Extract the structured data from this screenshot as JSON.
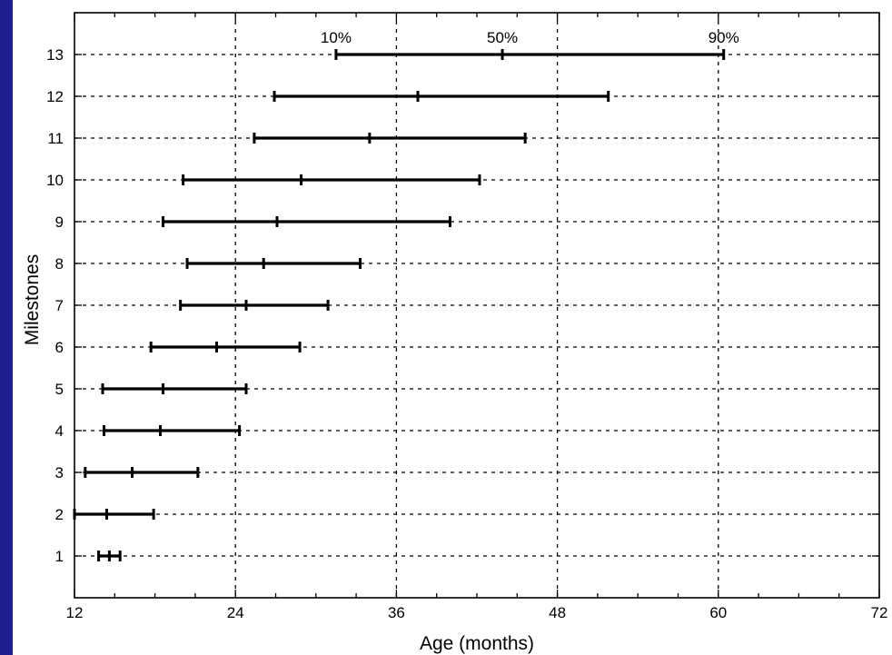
{
  "colors": {
    "background": "#1f1f8f",
    "plot_background": "#ffffff",
    "marks": "#000000"
  },
  "chart_data": {
    "type": "errorbar",
    "title": "",
    "xlabel": "Age (months)",
    "ylabel": "Milestones",
    "xlim": [
      12,
      72
    ],
    "ylim": [
      0,
      14
    ],
    "xticks": [
      12,
      24,
      36,
      48,
      60,
      72
    ],
    "yticks": [
      1,
      2,
      3,
      4,
      5,
      6,
      7,
      8,
      9,
      10,
      11,
      12,
      13
    ],
    "grid": true,
    "percentile_labels": [
      {
        "text": "10%",
        "x": 31.5
      },
      {
        "text": "50%",
        "x": 43.9
      },
      {
        "text": "90%",
        "x": 60.4
      }
    ],
    "milestones": [
      {
        "milestone": 1,
        "p10": 13.8,
        "p50": 14.6,
        "p90": 15.4
      },
      {
        "milestone": 2,
        "p10": 12.0,
        "p50": 14.4,
        "p90": 17.9
      },
      {
        "milestone": 3,
        "p10": 12.8,
        "p50": 16.3,
        "p90": 21.2
      },
      {
        "milestone": 4,
        "p10": 14.2,
        "p50": 18.4,
        "p90": 24.3
      },
      {
        "milestone": 5,
        "p10": 14.1,
        "p50": 18.6,
        "p90": 24.8
      },
      {
        "milestone": 6,
        "p10": 17.7,
        "p50": 22.6,
        "p90": 28.8
      },
      {
        "milestone": 7,
        "p10": 19.9,
        "p50": 24.8,
        "p90": 30.9
      },
      {
        "milestone": 8,
        "p10": 20.4,
        "p50": 26.1,
        "p90": 33.3
      },
      {
        "milestone": 9,
        "p10": 18.6,
        "p50": 27.1,
        "p90": 40.0
      },
      {
        "milestone": 10,
        "p10": 20.1,
        "p50": 28.9,
        "p90": 42.2
      },
      {
        "milestone": 11,
        "p10": 25.4,
        "p50": 34.0,
        "p90": 45.6
      },
      {
        "milestone": 12,
        "p10": 26.9,
        "p50": 37.6,
        "p90": 51.8
      },
      {
        "milestone": 13,
        "p10": 31.5,
        "p50": 43.9,
        "p90": 60.4
      }
    ]
  }
}
